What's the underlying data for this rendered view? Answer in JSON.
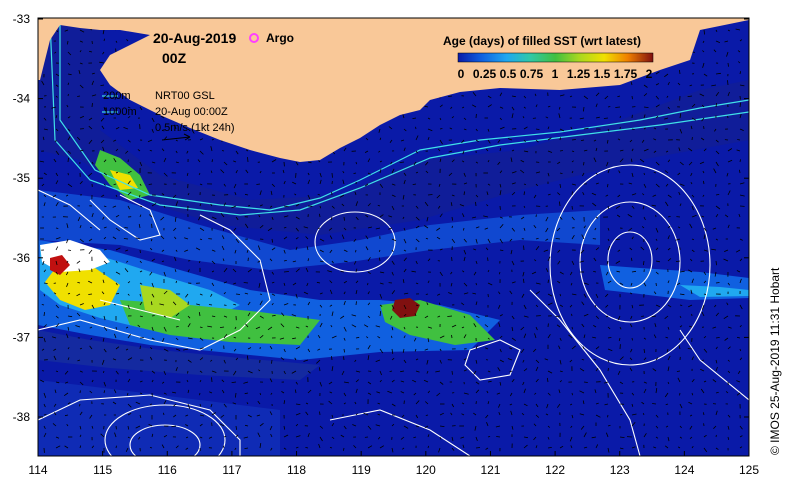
{
  "header": {
    "date": "20-Aug-2019",
    "time": "00Z",
    "argo_label": "Argo"
  },
  "legend_box": {
    "line_200": "200m",
    "line_1000": "1000m",
    "product": "NRT00 GSL",
    "valid": "20-Aug 00:00Z",
    "vector_scale": "0.5m/s (1kt 24h)"
  },
  "colorbar": {
    "title": "Age (days) of filled SST (wrt latest)",
    "labels": [
      "0",
      "0.25",
      "0.5",
      "0.75",
      "1",
      "1.25",
      "1.5",
      "1.75",
      "2"
    ],
    "colors": [
      "#0a1aa8",
      "#1060e0",
      "#20a8f0",
      "#30c8a8",
      "#40c040",
      "#a8d820",
      "#f0e000",
      "#f08000",
      "#c01010",
      "#801010"
    ]
  },
  "axes": {
    "x_ticks": [
      "114",
      "115",
      "116",
      "117",
      "118",
      "119",
      "120",
      "121",
      "122",
      "123",
      "124",
      "125"
    ],
    "y_ticks": [
      "-33",
      "-34",
      "-35",
      "-36",
      "-37",
      "-38"
    ]
  },
  "copyright": "© IMOS 25-Aug-2019 11:31 Hobart",
  "colors": {
    "land": "#f9c898",
    "ocean": "#0a1aa8",
    "contour": "#ffffff",
    "isobath": "#40e0e8",
    "argo": "#ff40ff"
  }
}
